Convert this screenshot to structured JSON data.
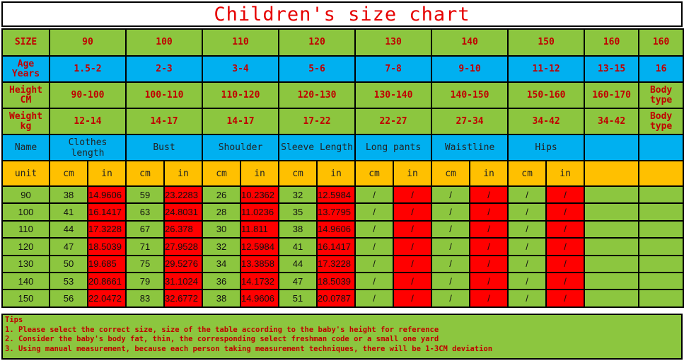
{
  "title": "Children's size chart",
  "size_row": [
    "SIZE",
    "90",
    "100",
    "110",
    "120",
    "130",
    "140",
    "150",
    "160",
    "160"
  ],
  "age_row": [
    "Age Years",
    "1.5-2",
    "2-3",
    "3-4",
    "5-6",
    "7-8",
    "9-10",
    "11-12",
    "13-15",
    "16"
  ],
  "height_row": [
    "Height CM",
    "90-100",
    "100-110",
    "110-120",
    "120-130",
    "130-140",
    "140-150",
    "150-160",
    "160-170",
    "Body type"
  ],
  "weight_row": [
    "Weight kg",
    "12-14",
    "14-17",
    "14-17",
    "17-22",
    "22-27",
    "27-34",
    "34-42",
    "34-42",
    "Body type"
  ],
  "measure_row": [
    "Name",
    "Clothes length",
    "Bust",
    "Shoulder",
    "Sleeve Length",
    "Long pants",
    "Waistline",
    "Hips",
    "",
    ""
  ],
  "unit_row": [
    "unit",
    "cm",
    "in",
    "cm",
    "in",
    "cm",
    "in",
    "cm",
    "in",
    "cm",
    "in",
    "cm",
    "in",
    "cm",
    "in",
    "",
    ""
  ],
  "data_rows": [
    [
      "90",
      "38",
      "14.9606",
      "59",
      "23.2283",
      "26",
      "10.2362",
      "32",
      "12.5984",
      "/",
      "/",
      "/",
      "/",
      "/",
      "/",
      "",
      ""
    ],
    [
      "100",
      "41",
      "16.1417",
      "63",
      "24.8031",
      "28",
      "11.0236",
      "35",
      "13.7795",
      "/",
      "/",
      "/",
      "/",
      "/",
      "/",
      "",
      ""
    ],
    [
      "110",
      "44",
      "17.3228",
      "67",
      "26.378",
      "30",
      "11.811",
      "38",
      "14.9606",
      "/",
      "/",
      "/",
      "/",
      "/",
      "/",
      "",
      ""
    ],
    [
      "120",
      "47",
      "18.5039",
      "71",
      "27.9528",
      "32",
      "12.5984",
      "41",
      "16.1417",
      "/",
      "/",
      "/",
      "/",
      "/",
      "/",
      "",
      ""
    ],
    [
      "130",
      "50",
      "19.685",
      "75",
      "29.5276",
      "34",
      "13.3858",
      "44",
      "17.3228",
      "/",
      "/",
      "/",
      "/",
      "/",
      "/",
      "",
      ""
    ],
    [
      "140",
      "53",
      "20.8661",
      "79",
      "31.1024",
      "36",
      "14.1732",
      "47",
      "18.5039",
      "/",
      "/",
      "/",
      "/",
      "/",
      "/",
      "",
      ""
    ],
    [
      "150",
      "56",
      "22.0472",
      "83",
      "32.6772",
      "38",
      "14.9606",
      "51",
      "20.0787",
      "/",
      "/",
      "/",
      "/",
      "/",
      "/",
      "",
      ""
    ]
  ],
  "tips": {
    "heading": "Tips",
    "items": [
      "1. Please select the correct size, size of the table according to the baby's height for reference",
      "2. Consider the baby's body fat, thin, the corresponding select freshman code or a small one yard",
      "3. Using manual measurement, because each person taking measurement techniques, there will be 1-3CM deviation"
    ]
  },
  "colors": {
    "title_text": "#e60000",
    "green": "#8cc63f",
    "blue": "#00b0f0",
    "orange": "#ffc000",
    "red": "#ff0000",
    "label_text": "#c00000"
  }
}
